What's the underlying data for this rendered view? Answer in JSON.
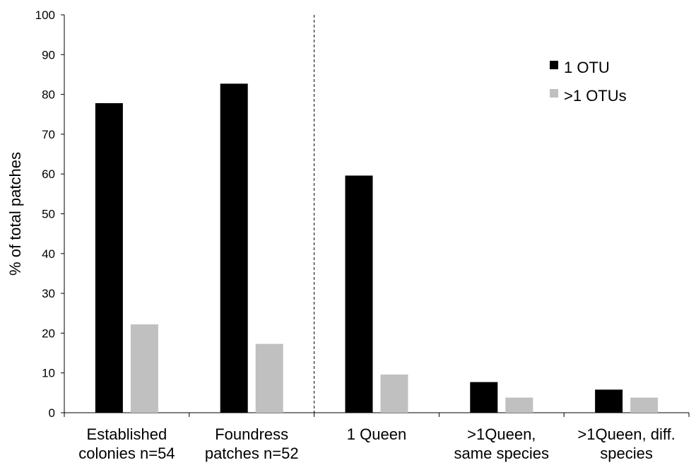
{
  "chart_data": {
    "type": "bar",
    "title": "",
    "xlabel": "",
    "ylabel": "% of total patches",
    "ylim": [
      0,
      100
    ],
    "yticks": [
      0,
      10,
      20,
      30,
      40,
      50,
      60,
      70,
      80,
      90,
      100
    ],
    "grid": false,
    "legend_position": "top-right",
    "categories": [
      [
        "Established",
        "colonies  n=54"
      ],
      [
        "Foundress",
        "patches n=52"
      ],
      [
        "1 Queen"
      ],
      [
        ">1Queen,",
        "same species"
      ],
      [
        ">1Queen, diff.",
        "species"
      ]
    ],
    "series": [
      {
        "name": "1  OTU",
        "color": "#000000",
        "values": [
          77.8,
          82.7,
          59.6,
          7.7,
          5.8
        ]
      },
      {
        "name": ">1 OTUs",
        "color": "#c0c0c0",
        "values": [
          22.2,
          17.3,
          9.6,
          3.8,
          3.8
        ]
      }
    ],
    "divider_after_category": 2
  }
}
